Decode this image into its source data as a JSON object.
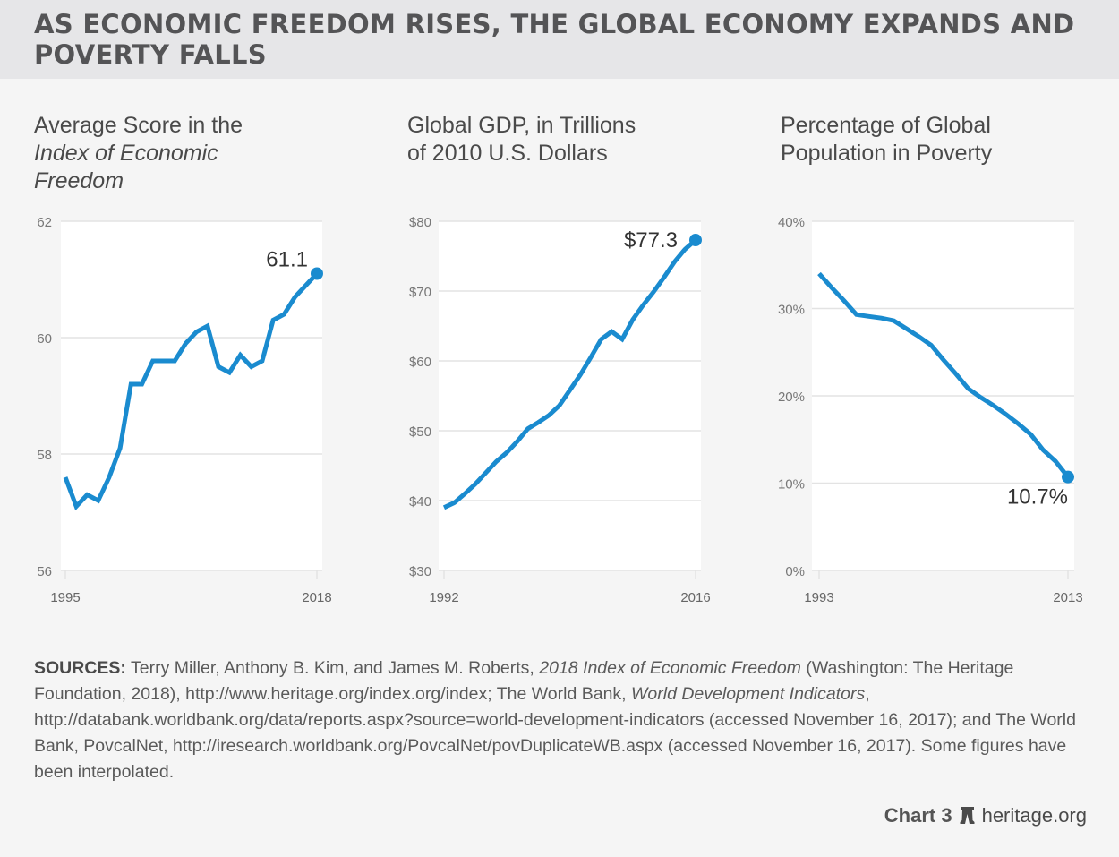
{
  "title": "AS ECONOMIC FREEDOM RISES, THE GLOBAL ECONOMY EXPANDS AND POVERTY FALLS",
  "subtitles": {
    "chart1": {
      "line1": "Average Score in the",
      "line2_italic": "Index of Economic",
      "line3_italic": "Freedom"
    },
    "chart2": {
      "line1": "Global GDP, in Trillions",
      "line2": "of 2010 U.S. Dollars"
    },
    "chart3": {
      "line1": "Percentage of Global",
      "line2": "Population in Poverty"
    }
  },
  "colors": {
    "line": "#1a8bcf",
    "grid": "#e3e3e3",
    "plot_bg": "#ffffff",
    "page_bg": "#f5f5f5",
    "header_bg": "#e6e6e8"
  },
  "chart_data": [
    {
      "type": "line",
      "title": "Average Score in the Index of Economic Freedom",
      "xlabel": "",
      "ylabel": "",
      "x": [
        1995,
        1996,
        1997,
        1998,
        1999,
        2000,
        2001,
        2002,
        2003,
        2004,
        2005,
        2006,
        2007,
        2008,
        2009,
        2010,
        2011,
        2012,
        2013,
        2014,
        2015,
        2016,
        2017,
        2018
      ],
      "values": [
        57.6,
        57.1,
        57.3,
        57.2,
        57.6,
        58.1,
        59.2,
        59.2,
        59.6,
        59.6,
        59.6,
        59.9,
        60.1,
        60.2,
        59.5,
        59.4,
        59.7,
        59.5,
        59.6,
        60.3,
        60.4,
        60.7,
        60.9,
        61.1
      ],
      "ylim": [
        56,
        62
      ],
      "yticks": [
        56,
        58,
        60,
        62
      ],
      "ytick_labels": [
        "56",
        "58",
        "60",
        "62"
      ],
      "xtick_labels": [
        "1995",
        "2018"
      ],
      "annotation": {
        "text": "61.1",
        "at": "last"
      },
      "grid": true
    },
    {
      "type": "line",
      "title": "Global GDP, in Trillions of 2010 U.S. Dollars",
      "xlabel": "",
      "ylabel": "",
      "x": [
        1992,
        1993,
        1994,
        1995,
        1996,
        1997,
        1998,
        1999,
        2000,
        2001,
        2002,
        2003,
        2004,
        2005,
        2006,
        2007,
        2008,
        2009,
        2010,
        2011,
        2012,
        2013,
        2014,
        2015,
        2016
      ],
      "values": [
        39.0,
        39.7,
        41.0,
        42.4,
        44.0,
        45.6,
        46.9,
        48.5,
        50.3,
        51.2,
        52.2,
        53.6,
        55.8,
        58.0,
        60.5,
        63.1,
        64.2,
        63.1,
        65.9,
        68.0,
        69.9,
        72.0,
        74.2,
        76.0,
        77.3
      ],
      "ylim": [
        30,
        80
      ],
      "yticks": [
        30,
        40,
        50,
        60,
        70,
        80
      ],
      "ytick_labels": [
        "$30",
        "$40",
        "$50",
        "$60",
        "$70",
        "$80"
      ],
      "xtick_labels": [
        "1992",
        "2016"
      ],
      "annotation": {
        "text": "$77.3",
        "at": "last"
      },
      "grid": true
    },
    {
      "type": "line",
      "title": "Percentage of Global Population in Poverty",
      "xlabel": "",
      "ylabel": "",
      "x": [
        1993,
        1994,
        1995,
        1996,
        1997,
        1998,
        1999,
        2000,
        2001,
        2002,
        2003,
        2004,
        2005,
        2006,
        2007,
        2008,
        2009,
        2010,
        2011,
        2012,
        2013
      ],
      "values": [
        34.0,
        32.4,
        30.9,
        29.3,
        29.1,
        28.9,
        28.6,
        27.7,
        26.8,
        25.8,
        24.1,
        22.5,
        20.8,
        19.8,
        18.9,
        17.9,
        16.8,
        15.6,
        13.8,
        12.5,
        10.7
      ],
      "ylim": [
        0,
        40
      ],
      "yticks": [
        0,
        10,
        20,
        30,
        40
      ],
      "ytick_labels": [
        "0%",
        "10%",
        "20%",
        "30%",
        "40%"
      ],
      "xtick_labels": [
        "1993",
        "2013"
      ],
      "annotation": {
        "text": "10.7%",
        "at": "last"
      },
      "grid": true
    }
  ],
  "sources": {
    "label": "SOURCES:",
    "p1": " Terry Miller, Anthony B. Kim, and James M. Roberts, ",
    "i1": "2018 Index of Economic Freedom",
    "p2": " (Washington: The Heritage Foundation, 2018), http://www.heritage.org/index.org/index; The World Bank, ",
    "i2": "World Development Indicators",
    "p3": ", http://databank.worldbank.org/data/reports.aspx?source=world-development-indicators (accessed November 16, 2017); and The World Bank, PovcalNet, http://iresearch.worldbank.org/PovcalNet/povDuplicateWB.aspx (accessed November 16, 2017). Some figures have been interpolated."
  },
  "footer": {
    "chart_label": "Chart 3",
    "site": "heritage.org",
    "logo_icon": "liberty-bell-icon"
  }
}
